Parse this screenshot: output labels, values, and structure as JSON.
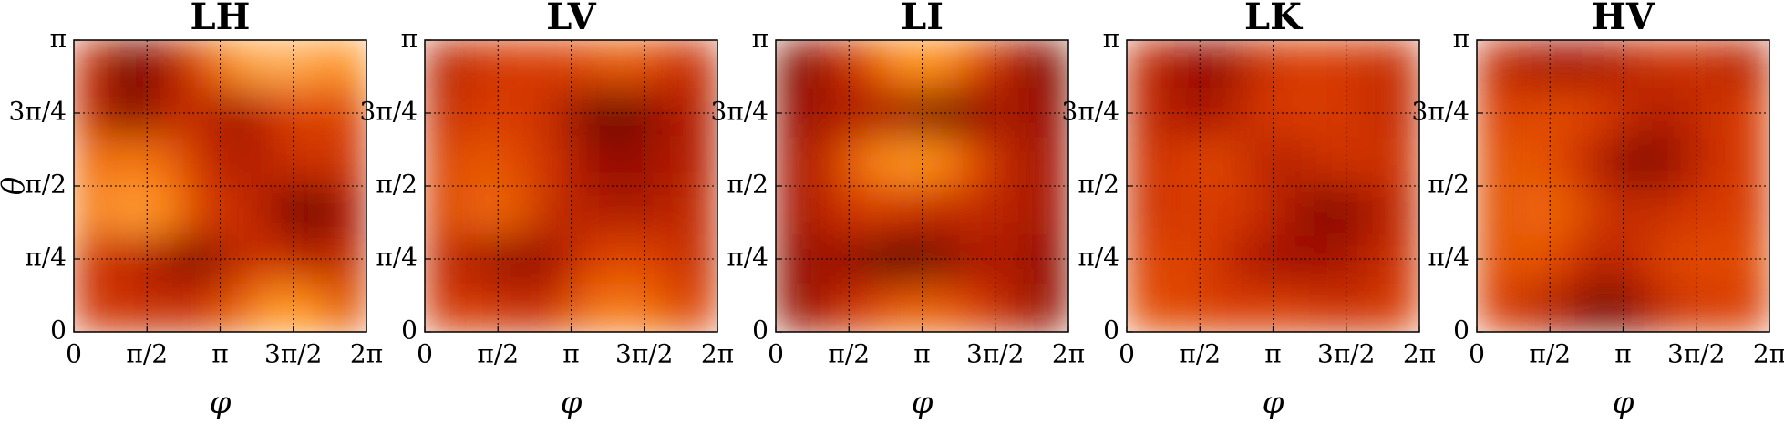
{
  "chart_data": [
    {
      "type": "heatmap",
      "title": "LH",
      "xlabel": "φ",
      "ylabel": "θ",
      "grid": true,
      "xlim": [
        0,
        6.2832
      ],
      "ylim": [
        0,
        3.1416
      ],
      "xticks": [
        0,
        {
          "value": 1.5708,
          "label": "π/2"
        },
        {
          "value": 3.1416,
          "label": "π"
        },
        {
          "value": 4.7124,
          "label": "3π/2"
        },
        {
          "value": 6.2832,
          "label": "2π"
        }
      ],
      "yticks": [
        0,
        {
          "value": 0.7854,
          "label": "π/4"
        },
        {
          "value": 1.5708,
          "label": "π/2"
        },
        {
          "value": 2.3562,
          "label": "3π/4"
        },
        {
          "value": 3.1416,
          "label": "π"
        }
      ],
      "z": [
        [
          0.45,
          0.15,
          0.3,
          0.6,
          0.85,
          0.95,
          0.9,
          0.8
        ],
        [
          0.45,
          0.2,
          0.4,
          0.45,
          0.3,
          0.5,
          0.6,
          0.55
        ],
        [
          0.7,
          0.75,
          0.7,
          0.5,
          0.35,
          0.45,
          0.5,
          0.5
        ],
        [
          0.75,
          0.9,
          0.8,
          0.55,
          0.5,
          0.3,
          0.1,
          0.35
        ],
        [
          0.5,
          0.45,
          0.3,
          0.2,
          0.45,
          0.5,
          0.4,
          0.45
        ],
        [
          0.5,
          0.5,
          0.45,
          0.5,
          0.65,
          0.85,
          0.8,
          0.6
        ]
      ]
    },
    {
      "type": "heatmap",
      "title": "LV",
      "xlabel": "φ",
      "grid": true,
      "xlim": [
        0,
        6.2832
      ],
      "ylim": [
        0,
        3.1416
      ],
      "xticks": [
        0,
        {
          "value": 1.5708,
          "label": "π/2"
        },
        {
          "value": 3.1416,
          "label": "π"
        },
        {
          "value": 4.7124,
          "label": "3π/2"
        },
        {
          "value": 6.2832,
          "label": "2π"
        }
      ],
      "yticks": [
        0,
        {
          "value": 0.7854,
          "label": "π/4"
        },
        {
          "value": 1.5708,
          "label": "π/2"
        },
        {
          "value": 2.3562,
          "label": "3π/4"
        },
        {
          "value": 3.1416,
          "label": "π"
        }
      ],
      "z": [
        [
          0.4,
          0.5,
          0.55,
          0.55,
          0.6,
          0.65,
          0.55,
          0.45
        ],
        [
          0.45,
          0.55,
          0.55,
          0.45,
          0.2,
          0.15,
          0.3,
          0.4
        ],
        [
          0.55,
          0.65,
          0.6,
          0.5,
          0.3,
          0.25,
          0.35,
          0.4
        ],
        [
          0.55,
          0.7,
          0.65,
          0.45,
          0.4,
          0.35,
          0.4,
          0.45
        ],
        [
          0.45,
          0.35,
          0.25,
          0.3,
          0.55,
          0.6,
          0.55,
          0.45
        ],
        [
          0.5,
          0.55,
          0.45,
          0.5,
          0.7,
          0.75,
          0.65,
          0.55
        ]
      ]
    },
    {
      "type": "heatmap",
      "title": "LI",
      "xlabel": "φ",
      "grid": true,
      "xlim": [
        0,
        6.2832
      ],
      "ylim": [
        0,
        3.1416
      ],
      "xticks": [
        0,
        {
          "value": 1.5708,
          "label": "π/2"
        },
        {
          "value": 3.1416,
          "label": "π"
        },
        {
          "value": 4.7124,
          "label": "3π/2"
        },
        {
          "value": 6.2832,
          "label": "2π"
        }
      ],
      "yticks": [
        0,
        {
          "value": 0.7854,
          "label": "π/4"
        },
        {
          "value": 1.5708,
          "label": "π/2"
        },
        {
          "value": 2.3562,
          "label": "3π/4"
        },
        {
          "value": 3.1416,
          "label": "π"
        }
      ],
      "z": [
        [
          0.2,
          0.35,
          0.6,
          0.8,
          0.8,
          0.6,
          0.35,
          0.2
        ],
        [
          0.25,
          0.35,
          0.35,
          0.3,
          0.15,
          0.25,
          0.35,
          0.25
        ],
        [
          0.3,
          0.5,
          0.75,
          0.85,
          0.8,
          0.6,
          0.4,
          0.3
        ],
        [
          0.3,
          0.45,
          0.55,
          0.5,
          0.45,
          0.45,
          0.4,
          0.3
        ],
        [
          0.25,
          0.3,
          0.2,
          0.1,
          0.2,
          0.35,
          0.35,
          0.25
        ],
        [
          0.25,
          0.4,
          0.55,
          0.65,
          0.65,
          0.55,
          0.4,
          0.25
        ]
      ]
    },
    {
      "type": "heatmap",
      "title": "LK",
      "xlabel": "φ",
      "grid": true,
      "xlim": [
        0,
        6.2832
      ],
      "ylim": [
        0,
        3.1416
      ],
      "xticks": [
        0,
        {
          "value": 1.5708,
          "label": "π/2"
        },
        {
          "value": 3.1416,
          "label": "π"
        },
        {
          "value": 4.7124,
          "label": "3π/2"
        },
        {
          "value": 6.2832,
          "label": "2π"
        }
      ],
      "yticks": [
        0,
        {
          "value": 0.7854,
          "label": "π/4"
        },
        {
          "value": 1.5708,
          "label": "π/2"
        },
        {
          "value": 2.3562,
          "label": "3π/4"
        },
        {
          "value": 3.1416,
          "label": "π"
        }
      ],
      "z": [
        [
          0.45,
          0.3,
          0.25,
          0.45,
          0.55,
          0.55,
          0.5,
          0.45
        ],
        [
          0.45,
          0.35,
          0.35,
          0.5,
          0.55,
          0.55,
          0.5,
          0.45
        ],
        [
          0.5,
          0.55,
          0.6,
          0.45,
          0.4,
          0.5,
          0.5,
          0.5
        ],
        [
          0.5,
          0.55,
          0.55,
          0.5,
          0.35,
          0.2,
          0.3,
          0.45
        ],
        [
          0.55,
          0.6,
          0.5,
          0.35,
          0.3,
          0.3,
          0.4,
          0.5
        ],
        [
          0.6,
          0.6,
          0.55,
          0.55,
          0.55,
          0.5,
          0.5,
          0.55
        ]
      ]
    },
    {
      "type": "heatmap",
      "title": "HV",
      "xlabel": "φ",
      "grid": true,
      "xlim": [
        0,
        6.2832
      ],
      "ylim": [
        0,
        3.1416
      ],
      "xticks": [
        0,
        {
          "value": 1.5708,
          "label": "π/2"
        },
        {
          "value": 3.1416,
          "label": "π"
        },
        {
          "value": 4.7124,
          "label": "3π/2"
        },
        {
          "value": 6.2832,
          "label": "2π"
        }
      ],
      "yticks": [
        0,
        {
          "value": 0.7854,
          "label": "π/4"
        },
        {
          "value": 1.5708,
          "label": "π/2"
        },
        {
          "value": 2.3562,
          "label": "3π/4"
        },
        {
          "value": 3.1416,
          "label": "π"
        }
      ],
      "z": [
        [
          0.45,
          0.35,
          0.3,
          0.35,
          0.45,
          0.5,
          0.45,
          0.4
        ],
        [
          0.55,
          0.6,
          0.6,
          0.55,
          0.4,
          0.4,
          0.5,
          0.55
        ],
        [
          0.6,
          0.65,
          0.55,
          0.35,
          0.2,
          0.3,
          0.5,
          0.55
        ],
        [
          0.6,
          0.7,
          0.65,
          0.5,
          0.45,
          0.5,
          0.55,
          0.55
        ],
        [
          0.6,
          0.65,
          0.55,
          0.4,
          0.5,
          0.6,
          0.6,
          0.6
        ],
        [
          0.55,
          0.45,
          0.3,
          0.15,
          0.3,
          0.5,
          0.55,
          0.55
        ]
      ]
    }
  ]
}
